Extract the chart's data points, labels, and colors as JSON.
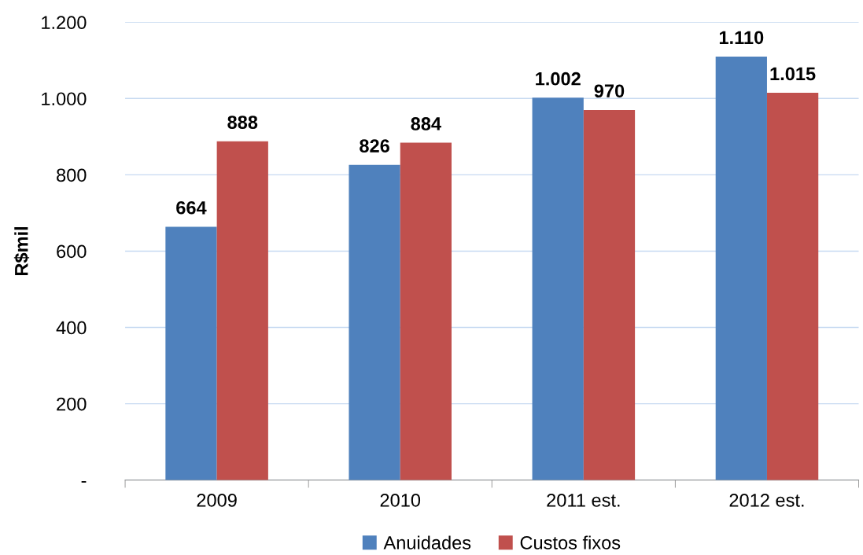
{
  "chart_data": {
    "type": "bar",
    "ylabel": "R$mil",
    "categories": [
      "2009",
      "2010",
      "2011 est.",
      "2012 est."
    ],
    "series": [
      {
        "name": "Anuidades",
        "color": "#4f81bd",
        "values": [
          664,
          826,
          1002,
          1110
        ],
        "value_labels": [
          "664",
          "826",
          "1.002",
          "1.110"
        ]
      },
      {
        "name": "Custos fixos",
        "color": "#c0504d",
        "values": [
          888,
          884,
          970,
          1015
        ],
        "value_labels": [
          "888",
          "884",
          "970",
          "1.015"
        ]
      }
    ],
    "ylim": [
      0,
      1200
    ],
    "yticks": [
      {
        "value": 0,
        "label": "-"
      },
      200,
      400,
      600,
      800,
      {
        "value": 1000,
        "label": "1.000"
      },
      {
        "value": 1200,
        "label": "1.200"
      }
    ],
    "grid": "y",
    "legend": "bottom"
  }
}
